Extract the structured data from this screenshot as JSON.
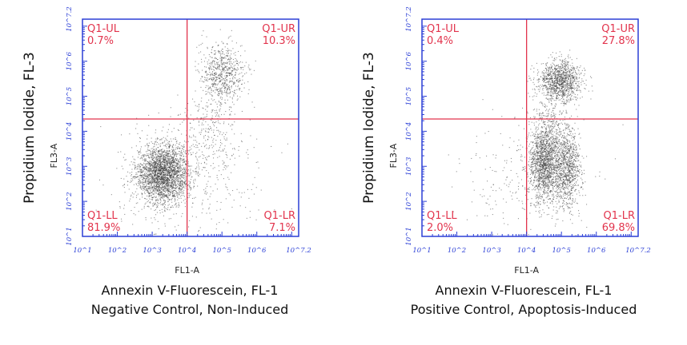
{
  "colors": {
    "frame": "#2b3fd6",
    "gate": "#e2344d",
    "events": "#3a3a3a"
  },
  "chart_data": [
    {
      "type": "scatter",
      "xlabel": "FL1-A",
      "ylabel": "FL3-A",
      "side_label": "Propidium Iodide, FL-3",
      "caption_lines": [
        "Annexin V-Fluorescein, FL-1",
        "Negative Control, Non-Induced"
      ],
      "x_scale": "log",
      "y_scale": "log",
      "xlim": [
        1,
        7.2
      ],
      "ylim": [
        1,
        7.2
      ],
      "x_ticks": [
        "10^1",
        "10^2",
        "10^3",
        "10^4",
        "10^5",
        "10^6",
        "10^7.2"
      ],
      "y_ticks": [
        "10^1",
        "10^2",
        "10^3",
        "10^4",
        "10^5",
        "10^6",
        "10^7.2"
      ],
      "gate": {
        "x": 4.0,
        "y": 4.35
      },
      "quadrants": [
        {
          "name": "Q1-UL",
          "percent": "0.7%"
        },
        {
          "name": "Q1-UR",
          "percent": "10.3%"
        },
        {
          "name": "Q1-LL",
          "percent": "81.9%"
        },
        {
          "name": "Q1-LR",
          "percent": "7.1%"
        }
      ],
      "populations": [
        {
          "cx": 3.3,
          "cy": 2.8,
          "sx": 0.38,
          "sy": 0.42,
          "n": 2600
        },
        {
          "cx": 5.0,
          "cy": 5.65,
          "sx": 0.33,
          "sy": 0.42,
          "n": 700
        },
        {
          "cx": 4.6,
          "cy": 3.9,
          "sx": 0.42,
          "sy": 0.6,
          "n": 280
        },
        {
          "cx": 3.8,
          "cy": 2.5,
          "sx": 1.2,
          "sy": 0.9,
          "n": 320
        }
      ]
    },
    {
      "type": "scatter",
      "xlabel": "FL1-A",
      "ylabel": "FL3-A",
      "side_label": "Propidium Iodide, FL-3",
      "caption_lines": [
        "Annexin V-Fluorescein, FL-1",
        "Positive Control, Apoptosis-Induced"
      ],
      "x_scale": "log",
      "y_scale": "log",
      "xlim": [
        1,
        7.2
      ],
      "ylim": [
        1,
        7.2
      ],
      "x_ticks": [
        "10^1",
        "10^2",
        "10^3",
        "10^4",
        "10^5",
        "10^6",
        "10^7.2"
      ],
      "y_ticks": [
        "10^1",
        "10^2",
        "10^3",
        "10^4",
        "10^5",
        "10^6",
        "10^7.2"
      ],
      "gate": {
        "x": 4.0,
        "y": 4.35
      },
      "quadrants": [
        {
          "name": "Q1-UL",
          "percent": "0.4%"
        },
        {
          "name": "Q1-UR",
          "percent": "27.8%"
        },
        {
          "name": "Q1-LL",
          "percent": "2.0%"
        },
        {
          "name": "Q1-LR",
          "percent": "69.8%"
        }
      ],
      "populations": [
        {
          "cx": 4.5,
          "cy": 3.1,
          "sx": 0.22,
          "sy": 0.55,
          "n": 1500
        },
        {
          "cx": 5.15,
          "cy": 2.95,
          "sx": 0.2,
          "sy": 0.55,
          "n": 900
        },
        {
          "cx": 4.95,
          "cy": 5.45,
          "sx": 0.3,
          "sy": 0.28,
          "n": 1100
        },
        {
          "cx": 4.7,
          "cy": 4.2,
          "sx": 0.3,
          "sy": 0.5,
          "n": 300
        },
        {
          "cx": 4.0,
          "cy": 2.6,
          "sx": 1.0,
          "sy": 0.9,
          "n": 260
        }
      ]
    }
  ]
}
